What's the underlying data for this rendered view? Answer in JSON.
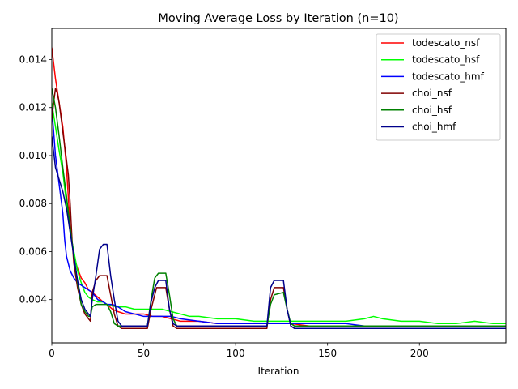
{
  "chart_data": {
    "type": "line",
    "title": "Moving Average Loss by Iteration (n=10)",
    "xlabel": "Iteration",
    "ylabel": "",
    "xlim": [
      0,
      247
    ],
    "ylim": [
      0.0022,
      0.0153
    ],
    "xticks": [
      0,
      50,
      100,
      150,
      200
    ],
    "yticks": [
      0.004,
      0.006,
      0.008,
      0.01,
      0.012,
      0.014
    ],
    "ytick_labels": [
      "0.004",
      "0.006",
      "0.008",
      "0.010",
      "0.012",
      "0.014"
    ],
    "legend_position": "upper right",
    "series": [
      {
        "name": "todescato_nsf",
        "color": "#ff0000",
        "points": [
          [
            0,
            0.0145
          ],
          [
            2,
            0.0132
          ],
          [
            4,
            0.0122
          ],
          [
            6,
            0.0112
          ],
          [
            8,
            0.0095
          ],
          [
            10,
            0.007
          ],
          [
            12,
            0.0058
          ],
          [
            14,
            0.0053
          ],
          [
            16,
            0.0049
          ],
          [
            18,
            0.0047
          ],
          [
            20,
            0.0044
          ],
          [
            22,
            0.0043
          ],
          [
            25,
            0.0041
          ],
          [
            28,
            0.0039
          ],
          [
            30,
            0.0038
          ],
          [
            33,
            0.0036
          ],
          [
            36,
            0.0035
          ],
          [
            40,
            0.0034
          ],
          [
            45,
            0.0034
          ],
          [
            50,
            0.0034
          ],
          [
            55,
            0.0033
          ],
          [
            60,
            0.0033
          ],
          [
            65,
            0.0032
          ],
          [
            70,
            0.0031
          ],
          [
            80,
            0.0031
          ],
          [
            90,
            0.003
          ],
          [
            100,
            0.003
          ],
          [
            110,
            0.003
          ],
          [
            120,
            0.003
          ],
          [
            130,
            0.003
          ],
          [
            140,
            0.0029
          ],
          [
            150,
            0.0029
          ],
          [
            160,
            0.0029
          ],
          [
            170,
            0.0029
          ],
          [
            180,
            0.0029
          ],
          [
            190,
            0.0029
          ],
          [
            200,
            0.0029
          ],
          [
            210,
            0.0029
          ],
          [
            220,
            0.0029
          ],
          [
            230,
            0.0029
          ],
          [
            240,
            0.0029
          ],
          [
            247,
            0.0029
          ]
        ]
      },
      {
        "name": "todescato_hsf",
        "color": "#00ff00",
        "points": [
          [
            0,
            0.0122
          ],
          [
            2,
            0.0112
          ],
          [
            4,
            0.0102
          ],
          [
            6,
            0.0093
          ],
          [
            8,
            0.008
          ],
          [
            10,
            0.0068
          ],
          [
            12,
            0.006
          ],
          [
            14,
            0.0052
          ],
          [
            16,
            0.0047
          ],
          [
            18,
            0.0043
          ],
          [
            20,
            0.0041
          ],
          [
            22,
            0.004
          ],
          [
            25,
            0.0039
          ],
          [
            28,
            0.0039
          ],
          [
            30,
            0.0038
          ],
          [
            35,
            0.0037
          ],
          [
            40,
            0.0037
          ],
          [
            45,
            0.0036
          ],
          [
            50,
            0.0036
          ],
          [
            55,
            0.0036
          ],
          [
            60,
            0.0036
          ],
          [
            65,
            0.0035
          ],
          [
            70,
            0.0034
          ],
          [
            75,
            0.0033
          ],
          [
            80,
            0.0033
          ],
          [
            90,
            0.0032
          ],
          [
            100,
            0.0032
          ],
          [
            110,
            0.0031
          ],
          [
            120,
            0.0031
          ],
          [
            130,
            0.0031
          ],
          [
            140,
            0.0031
          ],
          [
            150,
            0.0031
          ],
          [
            160,
            0.0031
          ],
          [
            170,
            0.0032
          ],
          [
            175,
            0.0033
          ],
          [
            180,
            0.0032
          ],
          [
            190,
            0.0031
          ],
          [
            200,
            0.0031
          ],
          [
            210,
            0.003
          ],
          [
            220,
            0.003
          ],
          [
            230,
            0.0031
          ],
          [
            240,
            0.003
          ],
          [
            247,
            0.003
          ]
        ]
      },
      {
        "name": "todescato_hmf",
        "color": "#0000ff",
        "points": [
          [
            0,
            0.012
          ],
          [
            2,
            0.01
          ],
          [
            4,
            0.0088
          ],
          [
            6,
            0.0076
          ],
          [
            7,
            0.0065
          ],
          [
            8,
            0.0058
          ],
          [
            10,
            0.0052
          ],
          [
            12,
            0.0049
          ],
          [
            14,
            0.0047
          ],
          [
            16,
            0.0046
          ],
          [
            18,
            0.0045
          ],
          [
            20,
            0.0044
          ],
          [
            22,
            0.0043
          ],
          [
            25,
            0.004
          ],
          [
            28,
            0.0039
          ],
          [
            30,
            0.0038
          ],
          [
            33,
            0.0038
          ],
          [
            36,
            0.0037
          ],
          [
            40,
            0.0035
          ],
          [
            45,
            0.0034
          ],
          [
            50,
            0.0033
          ],
          [
            55,
            0.0033
          ],
          [
            60,
            0.0033
          ],
          [
            65,
            0.0033
          ],
          [
            70,
            0.0032
          ],
          [
            80,
            0.0031
          ],
          [
            90,
            0.003
          ],
          [
            100,
            0.003
          ],
          [
            110,
            0.003
          ],
          [
            120,
            0.003
          ],
          [
            130,
            0.003
          ],
          [
            140,
            0.003
          ],
          [
            150,
            0.003
          ],
          [
            160,
            0.003
          ],
          [
            170,
            0.0029
          ],
          [
            180,
            0.0029
          ],
          [
            190,
            0.0029
          ],
          [
            200,
            0.0029
          ],
          [
            210,
            0.0029
          ],
          [
            220,
            0.0029
          ],
          [
            230,
            0.0029
          ],
          [
            240,
            0.0029
          ],
          [
            247,
            0.0029
          ]
        ]
      },
      {
        "name": "choi_nsf",
        "color": "#800000",
        "points": [
          [
            0,
            0.0115
          ],
          [
            1,
            0.0122
          ],
          [
            2,
            0.0128
          ],
          [
            3,
            0.0126
          ],
          [
            4,
            0.0122
          ],
          [
            6,
            0.011
          ],
          [
            8,
            0.0098
          ],
          [
            9,
            0.0092
          ],
          [
            10,
            0.008
          ],
          [
            11,
            0.0065
          ],
          [
            12,
            0.0055
          ],
          [
            14,
            0.0045
          ],
          [
            16,
            0.0038
          ],
          [
            18,
            0.0034
          ],
          [
            20,
            0.0032
          ],
          [
            21,
            0.0031
          ],
          [
            22,
            0.0043
          ],
          [
            24,
            0.0048
          ],
          [
            26,
            0.005
          ],
          [
            30,
            0.005
          ],
          [
            32,
            0.0042
          ],
          [
            34,
            0.0034
          ],
          [
            36,
            0.0029
          ],
          [
            38,
            0.0028
          ],
          [
            50,
            0.0028
          ],
          [
            52,
            0.0028
          ],
          [
            54,
            0.0036
          ],
          [
            57,
            0.0045
          ],
          [
            62,
            0.0045
          ],
          [
            64,
            0.0036
          ],
          [
            66,
            0.0029
          ],
          [
            68,
            0.0028
          ],
          [
            117,
            0.0028
          ],
          [
            119,
            0.004
          ],
          [
            121,
            0.0045
          ],
          [
            126,
            0.0045
          ],
          [
            128,
            0.0036
          ],
          [
            130,
            0.0029
          ],
          [
            132,
            0.0028
          ],
          [
            247,
            0.0028
          ]
        ]
      },
      {
        "name": "choi_hsf",
        "color": "#008000",
        "points": [
          [
            0,
            0.0128
          ],
          [
            2,
            0.012
          ],
          [
            4,
            0.0108
          ],
          [
            6,
            0.0095
          ],
          [
            8,
            0.0083
          ],
          [
            10,
            0.007
          ],
          [
            12,
            0.0058
          ],
          [
            14,
            0.0047
          ],
          [
            16,
            0.0038
          ],
          [
            18,
            0.0035
          ],
          [
            20,
            0.0033
          ],
          [
            21,
            0.0033
          ],
          [
            22,
            0.0037
          ],
          [
            24,
            0.0038
          ],
          [
            30,
            0.0038
          ],
          [
            32,
            0.0035
          ],
          [
            34,
            0.003
          ],
          [
            36,
            0.0029
          ],
          [
            50,
            0.0029
          ],
          [
            52,
            0.0029
          ],
          [
            54,
            0.004
          ],
          [
            56,
            0.0049
          ],
          [
            58,
            0.0051
          ],
          [
            62,
            0.0051
          ],
          [
            64,
            0.0042
          ],
          [
            66,
            0.0032
          ],
          [
            68,
            0.0029
          ],
          [
            117,
            0.0029
          ],
          [
            119,
            0.0038
          ],
          [
            121,
            0.0042
          ],
          [
            126,
            0.0043
          ],
          [
            128,
            0.0036
          ],
          [
            130,
            0.003
          ],
          [
            132,
            0.0029
          ],
          [
            247,
            0.0029
          ]
        ]
      },
      {
        "name": "choi_hmf",
        "color": "#00008b",
        "points": [
          [
            0,
            0.0108
          ],
          [
            2,
            0.0095
          ],
          [
            4,
            0.009
          ],
          [
            6,
            0.0085
          ],
          [
            8,
            0.0078
          ],
          [
            10,
            0.0068
          ],
          [
            12,
            0.0058
          ],
          [
            14,
            0.0048
          ],
          [
            16,
            0.004
          ],
          [
            18,
            0.0036
          ],
          [
            20,
            0.0034
          ],
          [
            21,
            0.0033
          ],
          [
            22,
            0.004
          ],
          [
            24,
            0.005
          ],
          [
            26,
            0.0061
          ],
          [
            28,
            0.0063
          ],
          [
            30,
            0.0063
          ],
          [
            32,
            0.005
          ],
          [
            34,
            0.004
          ],
          [
            36,
            0.0031
          ],
          [
            38,
            0.0029
          ],
          [
            52,
            0.0029
          ],
          [
            54,
            0.0039
          ],
          [
            56,
            0.0045
          ],
          [
            58,
            0.0048
          ],
          [
            62,
            0.0048
          ],
          [
            64,
            0.0036
          ],
          [
            66,
            0.003
          ],
          [
            68,
            0.0029
          ],
          [
            117,
            0.0029
          ],
          [
            119,
            0.0045
          ],
          [
            121,
            0.0048
          ],
          [
            126,
            0.0048
          ],
          [
            128,
            0.0036
          ],
          [
            130,
            0.0029
          ],
          [
            132,
            0.0028
          ],
          [
            247,
            0.0028
          ]
        ]
      }
    ]
  }
}
